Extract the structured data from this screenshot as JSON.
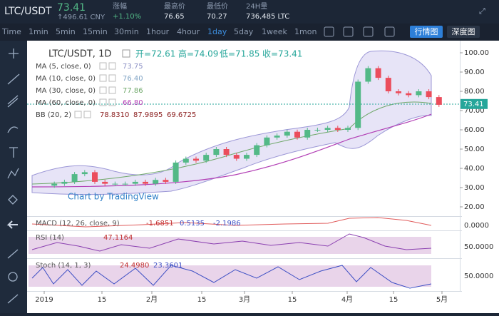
{
  "header": {
    "symbol": "LTC/USDT",
    "price": "73.41",
    "cny": "↑496.61 CNY",
    "stats": [
      {
        "label": "涨幅",
        "value": "+1.10%"
      },
      {
        "label": "最高价",
        "value": "76.65"
      },
      {
        "label": "最低价",
        "value": "70.27"
      },
      {
        "label": "24H量",
        "value": "736,485 LTC"
      }
    ]
  },
  "toolbar": {
    "intervals": [
      "Time",
      "1min",
      "5min",
      "15min",
      "30min",
      "1hour",
      "4hour",
      "1day",
      "5day",
      "1week",
      "1mon"
    ],
    "active_index": 7,
    "buttons": [
      "行情图",
      "深度图"
    ],
    "active_button": 0
  },
  "legend": {
    "title": "LTC/USDT, 1D",
    "ohlc": [
      "开=72.61",
      "高=74.09",
      "低=71.85",
      "收=73.41"
    ],
    "studies": [
      {
        "name": "MA (5, close, 0)",
        "values": [
          "73.75"
        ],
        "color": "#8a8fc4"
      },
      {
        "name": "MA (10, close, 0)",
        "values": [
          "76.40"
        ],
        "color": "#7fa3c4"
      },
      {
        "name": "MA (30, close, 0)",
        "values": [
          "77.86"
        ],
        "color": "#6fa86a"
      },
      {
        "name": "MA (60, close, 0)",
        "values": [
          "66.80"
        ],
        "color": "#b23fb5"
      },
      {
        "name": "BB (20, 2)",
        "values": [
          "78.8310",
          "87.9895",
          "69.6725"
        ],
        "color": "#8b1e1e"
      }
    ],
    "watermark": "Chart by TradingView"
  },
  "price_axis": {
    "ticks": [
      {
        "value": 100,
        "label": "100.00"
      },
      {
        "value": 90,
        "label": "90.00"
      },
      {
        "value": 80,
        "label": "80.00"
      },
      {
        "value": 70,
        "label": "70.00"
      },
      {
        "value": 60,
        "label": "60.00"
      },
      {
        "value": 50,
        "label": "50.00"
      },
      {
        "value": 40,
        "label": "40.00"
      },
      {
        "value": 30,
        "label": "30.00"
      },
      {
        "value": 20,
        "label": "20.00"
      }
    ],
    "last": {
      "value": 73.41,
      "label": "73.41"
    }
  },
  "chart": {
    "closes": [
      31,
      32,
      33,
      37,
      38,
      33,
      32,
      32,
      32,
      33,
      32,
      34,
      33,
      43,
      45,
      44,
      47,
      50,
      47,
      45,
      47,
      52,
      56,
      57,
      59,
      56,
      60,
      60,
      61,
      60,
      61,
      85,
      92,
      87,
      80,
      79,
      78,
      80,
      77,
      73
    ]
  },
  "indicators": [
    {
      "name": "MACD (12, 26, close, 9)",
      "values": [
        "-1.6851",
        "0.5135",
        "-2.1986"
      ],
      "axis": "0.0000"
    },
    {
      "name": "RSI (14)",
      "values": [
        "47.1164"
      ],
      "axis": "50.0000"
    },
    {
      "name": "Stoch (14, 1, 3)",
      "values": [
        "24.4980",
        "23.3601"
      ],
      "axis": "50.0000"
    }
  ],
  "time_axis": [
    "2019",
    "15",
    "2月",
    "15",
    "3月",
    "15",
    "4月",
    "15",
    "5月"
  ]
}
